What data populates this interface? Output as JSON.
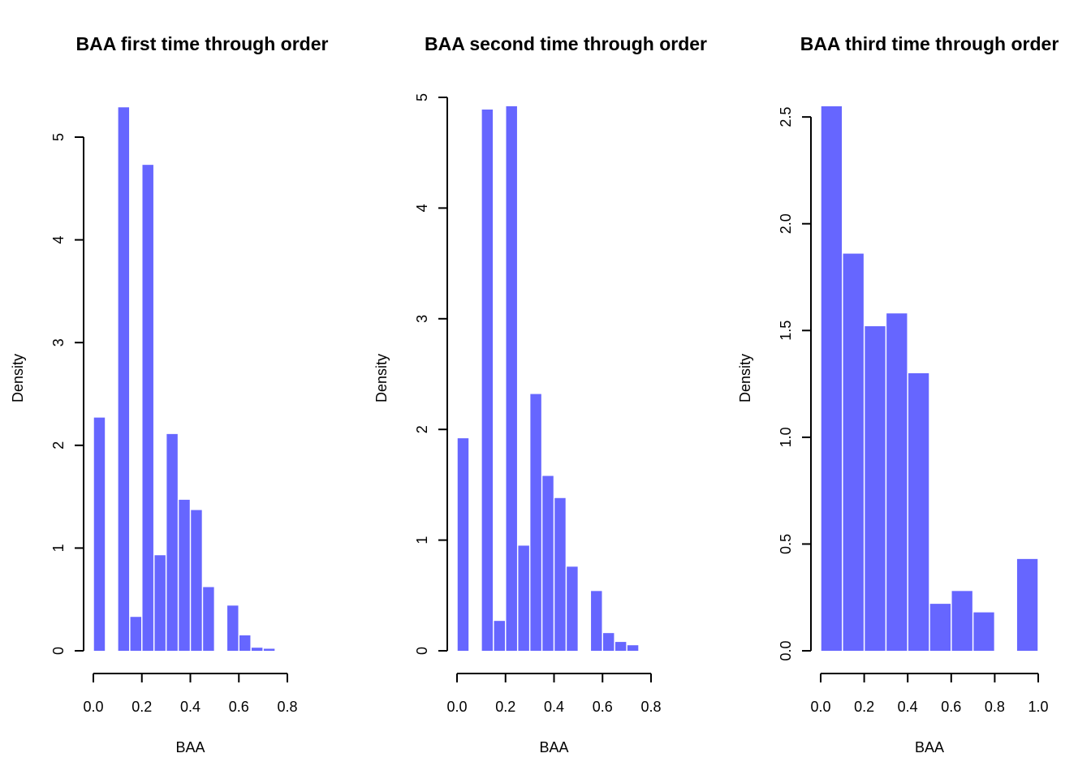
{
  "chart_data": [
    {
      "type": "bar",
      "title": "BAA first time through order",
      "xlabel": "BAA",
      "ylabel": "Density",
      "bar_color": "#6666ff",
      "xlim": [
        0,
        0.8
      ],
      "ylim": [
        0,
        5.3
      ],
      "x_ticks": [
        "0.0",
        "0.2",
        "0.4",
        "0.6",
        "0.8"
      ],
      "y_ticks": [
        "0",
        "1",
        "2",
        "3",
        "4",
        "5"
      ],
      "grid": false,
      "bins": [
        {
          "x0": 0.0,
          "x1": 0.05,
          "value": 2.27
        },
        {
          "x0": 0.05,
          "x1": 0.1,
          "value": 0
        },
        {
          "x0": 0.1,
          "x1": 0.15,
          "value": 5.29
        },
        {
          "x0": 0.15,
          "x1": 0.2,
          "value": 0.33
        },
        {
          "x0": 0.2,
          "x1": 0.25,
          "value": 4.73
        },
        {
          "x0": 0.25,
          "x1": 0.3,
          "value": 0.93
        },
        {
          "x0": 0.3,
          "x1": 0.35,
          "value": 2.11
        },
        {
          "x0": 0.35,
          "x1": 0.4,
          "value": 1.47
        },
        {
          "x0": 0.4,
          "x1": 0.45,
          "value": 1.37
        },
        {
          "x0": 0.45,
          "x1": 0.5,
          "value": 0.62
        },
        {
          "x0": 0.5,
          "x1": 0.55,
          "value": 0
        },
        {
          "x0": 0.55,
          "x1": 0.6,
          "value": 0.44
        },
        {
          "x0": 0.6,
          "x1": 0.65,
          "value": 0.15
        },
        {
          "x0": 0.65,
          "x1": 0.7,
          "value": 0.03
        },
        {
          "x0": 0.7,
          "x1": 0.75,
          "value": 0.02
        }
      ]
    },
    {
      "type": "bar",
      "title": "BAA second time through order",
      "xlabel": "BAA",
      "ylabel": "Density",
      "bar_color": "#6666ff",
      "xlim": [
        0,
        0.8
      ],
      "ylim": [
        0,
        5
      ],
      "x_ticks": [
        "0.0",
        "0.2",
        "0.4",
        "0.6",
        "0.8"
      ],
      "y_ticks": [
        "0",
        "1",
        "2",
        "3",
        "4",
        "5"
      ],
      "grid": false,
      "bins": [
        {
          "x0": 0.0,
          "x1": 0.05,
          "value": 1.92
        },
        {
          "x0": 0.05,
          "x1": 0.1,
          "value": 0
        },
        {
          "x0": 0.1,
          "x1": 0.15,
          "value": 4.89
        },
        {
          "x0": 0.15,
          "x1": 0.2,
          "value": 0.27
        },
        {
          "x0": 0.2,
          "x1": 0.25,
          "value": 4.92
        },
        {
          "x0": 0.25,
          "x1": 0.3,
          "value": 0.95
        },
        {
          "x0": 0.3,
          "x1": 0.35,
          "value": 2.32
        },
        {
          "x0": 0.35,
          "x1": 0.4,
          "value": 1.58
        },
        {
          "x0": 0.4,
          "x1": 0.45,
          "value": 1.38
        },
        {
          "x0": 0.45,
          "x1": 0.5,
          "value": 0.76
        },
        {
          "x0": 0.5,
          "x1": 0.55,
          "value": 0
        },
        {
          "x0": 0.55,
          "x1": 0.6,
          "value": 0.54
        },
        {
          "x0": 0.6,
          "x1": 0.65,
          "value": 0.16
        },
        {
          "x0": 0.65,
          "x1": 0.7,
          "value": 0.08
        },
        {
          "x0": 0.7,
          "x1": 0.75,
          "value": 0.05
        }
      ]
    },
    {
      "type": "bar",
      "title": "BAA third time through order",
      "xlabel": "BAA",
      "ylabel": "Density",
      "bar_color": "#6666ff",
      "xlim": [
        0,
        1.0
      ],
      "ylim": [
        0,
        2.55
      ],
      "x_ticks": [
        "0.0",
        "0.2",
        "0.4",
        "0.6",
        "0.8",
        "1.0"
      ],
      "y_ticks": [
        "0.0",
        "0.5",
        "1.0",
        "1.5",
        "2.0",
        "2.5"
      ],
      "grid": false,
      "bins": [
        {
          "x0": 0.0,
          "x1": 0.1,
          "value": 2.55
        },
        {
          "x0": 0.1,
          "x1": 0.2,
          "value": 1.86
        },
        {
          "x0": 0.2,
          "x1": 0.3,
          "value": 1.52
        },
        {
          "x0": 0.3,
          "x1": 0.4,
          "value": 1.58
        },
        {
          "x0": 0.4,
          "x1": 0.5,
          "value": 1.3
        },
        {
          "x0": 0.5,
          "x1": 0.6,
          "value": 0.22
        },
        {
          "x0": 0.6,
          "x1": 0.7,
          "value": 0.28
        },
        {
          "x0": 0.7,
          "x1": 0.8,
          "value": 0.18
        },
        {
          "x0": 0.8,
          "x1": 0.9,
          "value": 0
        },
        {
          "x0": 0.9,
          "x1": 1.0,
          "value": 0.43
        }
      ]
    }
  ]
}
